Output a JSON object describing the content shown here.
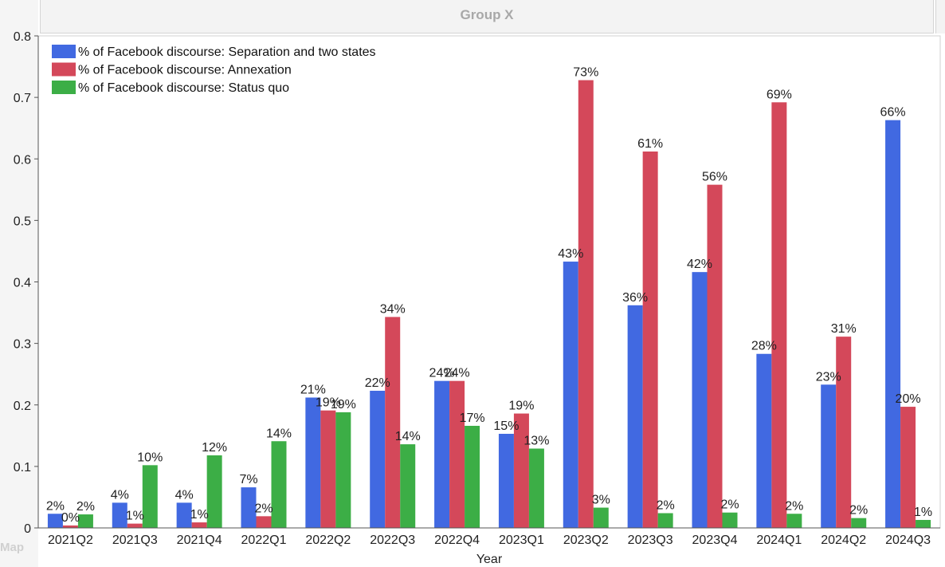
{
  "header": {
    "title": "Group X",
    "corner_text": "Map"
  },
  "chart_data": {
    "type": "bar",
    "title": "",
    "xlabel": "Year",
    "ylabel": "",
    "ylim": [
      0,
      0.8
    ],
    "yticks": [
      "0",
      "0.1",
      "0.2",
      "0.3",
      "0.4",
      "0.5",
      "0.6",
      "0.7",
      "0.8"
    ],
    "grid": false,
    "legend_position": "top-left",
    "categories": [
      "2021Q2",
      "2021Q3",
      "2021Q4",
      "2022Q1",
      "2022Q2",
      "2022Q3",
      "2022Q4",
      "2023Q1",
      "2023Q2",
      "2023Q3",
      "2023Q4",
      "2024Q1",
      "2024Q2",
      "2024Q3"
    ],
    "series": [
      {
        "name": "% of Facebook discourse: Separation and  two states",
        "color": "#4169e1",
        "values": [
          0.023,
          0.041,
          0.041,
          0.066,
          0.212,
          0.223,
          0.239,
          0.153,
          0.433,
          0.362,
          0.416,
          0.283,
          0.233,
          0.663
        ],
        "labels": [
          "2%",
          "4%",
          "4%",
          "7%",
          "21%",
          "22%",
          "24%",
          "15%",
          "43%",
          "36%",
          "42%",
          "28%",
          "23%",
          "66%"
        ]
      },
      {
        "name": "% of Facebook discourse: Annexation",
        "color": "#d4485a",
        "values": [
          0.004,
          0.007,
          0.009,
          0.019,
          0.191,
          0.343,
          0.239,
          0.186,
          0.728,
          0.612,
          0.558,
          0.692,
          0.311,
          0.197
        ],
        "labels": [
          "0%",
          "1%",
          "1%",
          "2%",
          "19%",
          "34%",
          "24%",
          "19%",
          "73%",
          "61%",
          "56%",
          "69%",
          "31%",
          "20%"
        ]
      },
      {
        "name": "% of Facebook discourse: Status quo",
        "color": "#3cae46",
        "values": [
          0.022,
          0.102,
          0.118,
          0.141,
          0.188,
          0.136,
          0.166,
          0.129,
          0.033,
          0.024,
          0.025,
          0.023,
          0.016,
          0.013
        ],
        "labels": [
          "2%",
          "10%",
          "12%",
          "14%",
          "19%",
          "14%",
          "17%",
          "13%",
          "3%",
          "2%",
          "2%",
          "2%",
          "2%",
          "1%"
        ]
      }
    ]
  }
}
